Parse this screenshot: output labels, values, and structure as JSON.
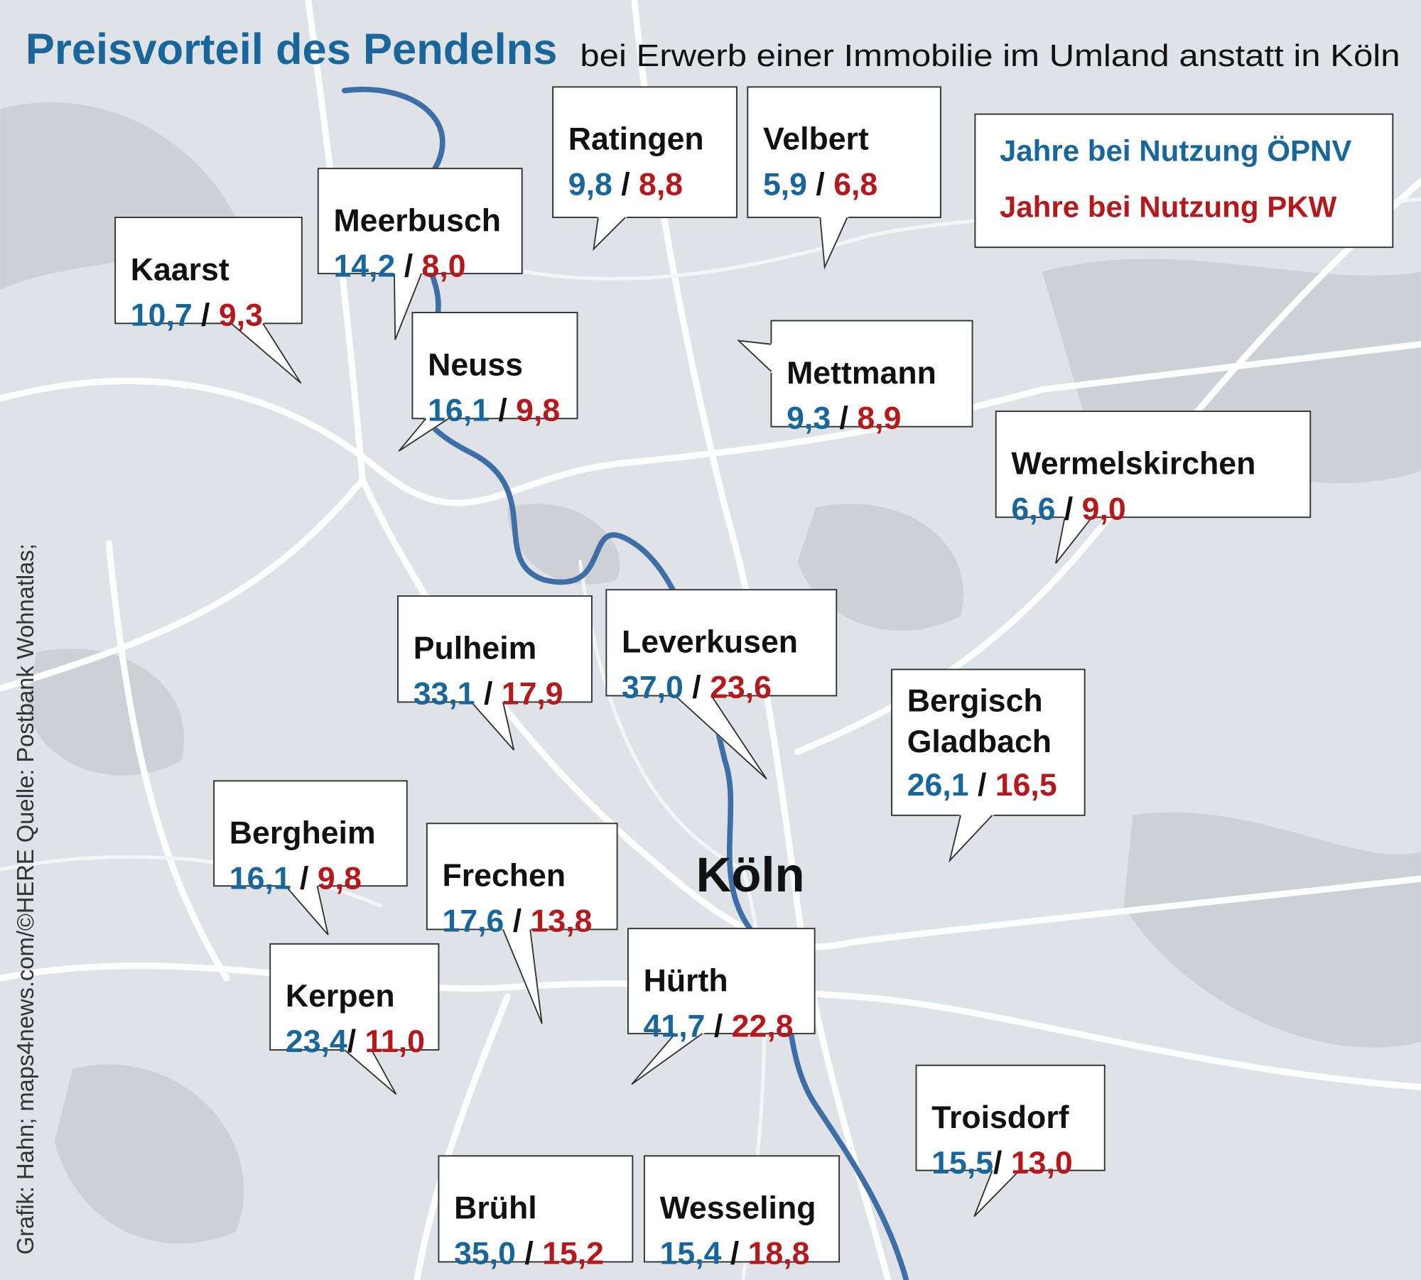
{
  "title": "Preisvorteil des Pendelns",
  "subtitle": "bei Erwerb einer Immobilie im Umland anstatt in Köln",
  "legend": {
    "opnv": "Jahre bei Nutzung ÖPNV",
    "pkw": "Jahre bei Nutzung PKW"
  },
  "center_label": "Köln",
  "credit": "Grafik: Hahn; maps4news.com/©HERE Quelle: Postbank Wohnatlas;",
  "cities": [
    {
      "name_lines": [
        "Ratingen"
      ],
      "opnv": "9,8",
      "separator": " / ",
      "pkw": "8,8"
    },
    {
      "name_lines": [
        "Velbert"
      ],
      "opnv": "5,9",
      "separator": " / ",
      "pkw": "6,8"
    },
    {
      "name_lines": [
        "Meerbusch"
      ],
      "opnv": "14,2",
      "separator": " / ",
      "pkw": "8,0"
    },
    {
      "name_lines": [
        "Kaarst"
      ],
      "opnv": "10,7",
      "separator": " / ",
      "pkw": "9,3"
    },
    {
      "name_lines": [
        "Neuss"
      ],
      "opnv": "16,1",
      "separator": " / ",
      "pkw": "9,8"
    },
    {
      "name_lines": [
        "Mettmann"
      ],
      "opnv": "9,3",
      "separator": " / ",
      "pkw": "8,9"
    },
    {
      "name_lines": [
        "Wermelskirchen"
      ],
      "opnv": "6,6",
      "separator": " / ",
      "pkw": "9,0"
    },
    {
      "name_lines": [
        "Pulheim"
      ],
      "opnv": "33,1",
      "separator": " / ",
      "pkw": "17,9"
    },
    {
      "name_lines": [
        "Leverkusen"
      ],
      "opnv": "37,0",
      "separator": " / ",
      "pkw": "23,6"
    },
    {
      "name_lines": [
        "Bergisch",
        "Gladbach"
      ],
      "opnv": "26,1",
      "separator": " / ",
      "pkw": "16,5"
    },
    {
      "name_lines": [
        "Bergheim"
      ],
      "opnv": "16,1",
      "separator": " / ",
      "pkw": "9,8"
    },
    {
      "name_lines": [
        "Frechen"
      ],
      "opnv": "17,6",
      "separator": " / ",
      "pkw": "13,8"
    },
    {
      "name_lines": [
        "Kerpen"
      ],
      "opnv": "23,4",
      "separator": "/ ",
      "pkw": "11,0"
    },
    {
      "name_lines": [
        "Hürth"
      ],
      "opnv": "41,7",
      "separator": " / ",
      "pkw": "22,8"
    },
    {
      "name_lines": [
        "Troisdorf"
      ],
      "opnv": "15,5",
      "separator": "/ ",
      "pkw": "13,0"
    },
    {
      "name_lines": [
        "Brühl"
      ],
      "opnv": "35,0",
      "separator": " / ",
      "pkw": "15,2"
    },
    {
      "name_lines": [
        "Wesseling"
      ],
      "opnv": "15,4",
      "separator": " / ",
      "pkw": "18,8"
    }
  ]
}
